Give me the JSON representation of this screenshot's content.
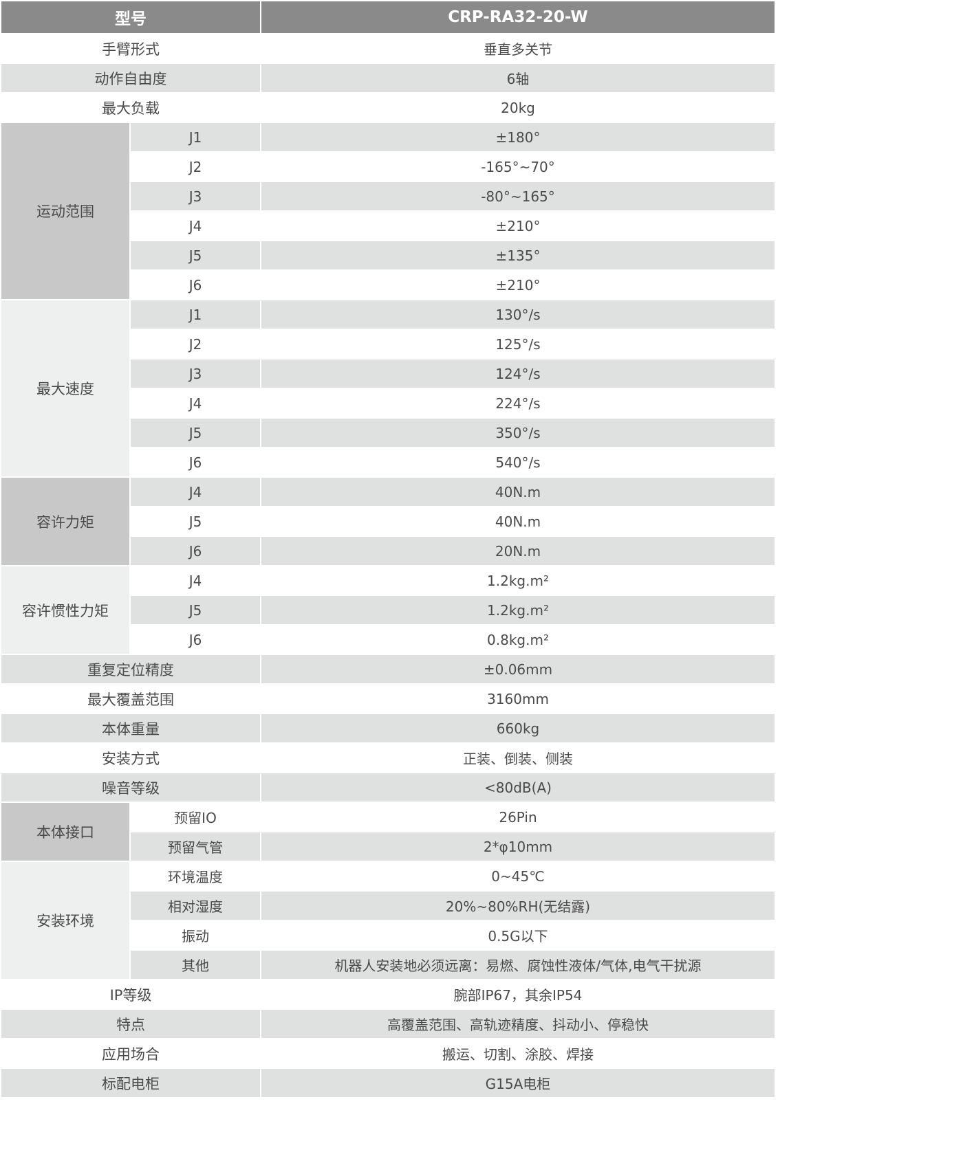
{
  "header": {
    "label": "型号",
    "value": "CRP-RA32-20-W"
  },
  "colors": {
    "header_bg": "#8a8a8a",
    "stripe": "#dfe0e0",
    "group_dark": "#c8c8c8",
    "group_light": "#eef0ef",
    "text": "#4a4a4a"
  },
  "rows": [
    {
      "label": "手臂形式",
      "value": "垂直多关节"
    },
    {
      "label": "动作自由度",
      "value": "6轴"
    },
    {
      "label": "最大负载",
      "value": "20kg"
    },
    {
      "group": "运动范围",
      "shade": "dark",
      "items": [
        {
          "label": "J1",
          "value": "±180°"
        },
        {
          "label": "J2",
          "value": "-165°~70°"
        },
        {
          "label": "J3",
          "value": "-80°~165°"
        },
        {
          "label": "J4",
          "value": "±210°"
        },
        {
          "label": "J5",
          "value": "±135°"
        },
        {
          "label": "J6",
          "value": "±210°"
        }
      ]
    },
    {
      "group": "最大速度",
      "shade": "light",
      "items": [
        {
          "label": "J1",
          "value": "130°/s"
        },
        {
          "label": "J2",
          "value": "125°/s"
        },
        {
          "label": "J3",
          "value": "124°/s"
        },
        {
          "label": "J4",
          "value": "224°/s"
        },
        {
          "label": "J5",
          "value": "350°/s"
        },
        {
          "label": "J6",
          "value": "540°/s"
        }
      ]
    },
    {
      "group": "容许力矩",
      "shade": "dark",
      "items": [
        {
          "label": "J4",
          "value": "40N.m"
        },
        {
          "label": "J5",
          "value": "40N.m"
        },
        {
          "label": "J6",
          "value": "20N.m"
        }
      ]
    },
    {
      "group": "容许惯性力矩",
      "shade": "light",
      "items": [
        {
          "label": "J4",
          "value": "1.2kg.m²"
        },
        {
          "label": "J5",
          "value": "1.2kg.m²"
        },
        {
          "label": "J6",
          "value": "0.8kg.m²"
        }
      ]
    },
    {
      "label": "重复定位精度",
      "value": "±0.06mm"
    },
    {
      "label": "最大覆盖范围",
      "value": "3160mm"
    },
    {
      "label": "本体重量",
      "value": "660kg"
    },
    {
      "label": "安装方式",
      "value": "正装、倒装、侧装"
    },
    {
      "label": "噪音等级",
      "value": "<80dB(A)"
    },
    {
      "group": "本体接口",
      "shade": "dark",
      "items": [
        {
          "label": "预留IO",
          "value": "26Pin"
        },
        {
          "label": "预留气管",
          "value": "2*φ10mm"
        }
      ]
    },
    {
      "group": "安装环境",
      "shade": "light",
      "items": [
        {
          "label": "环境温度",
          "value": "0~45℃"
        },
        {
          "label": "相对湿度",
          "value": "20%~80%RH(无结露)"
        },
        {
          "label": "振动",
          "value": "0.5G以下"
        },
        {
          "label": "其他",
          "value": "机器人安装地必须远离：易燃、腐蚀性液体/气体,电气干扰源"
        }
      ]
    },
    {
      "label": "IP等级",
      "value": "腕部IP67，其余IP54"
    },
    {
      "label": "特点",
      "value": "高覆盖范围、高轨迹精度、抖动小、停稳快"
    },
    {
      "label": "应用场合",
      "value": "搬运、切割、涂胶、焊接"
    },
    {
      "label": "标配电柜",
      "value": "G15A电柜"
    }
  ]
}
